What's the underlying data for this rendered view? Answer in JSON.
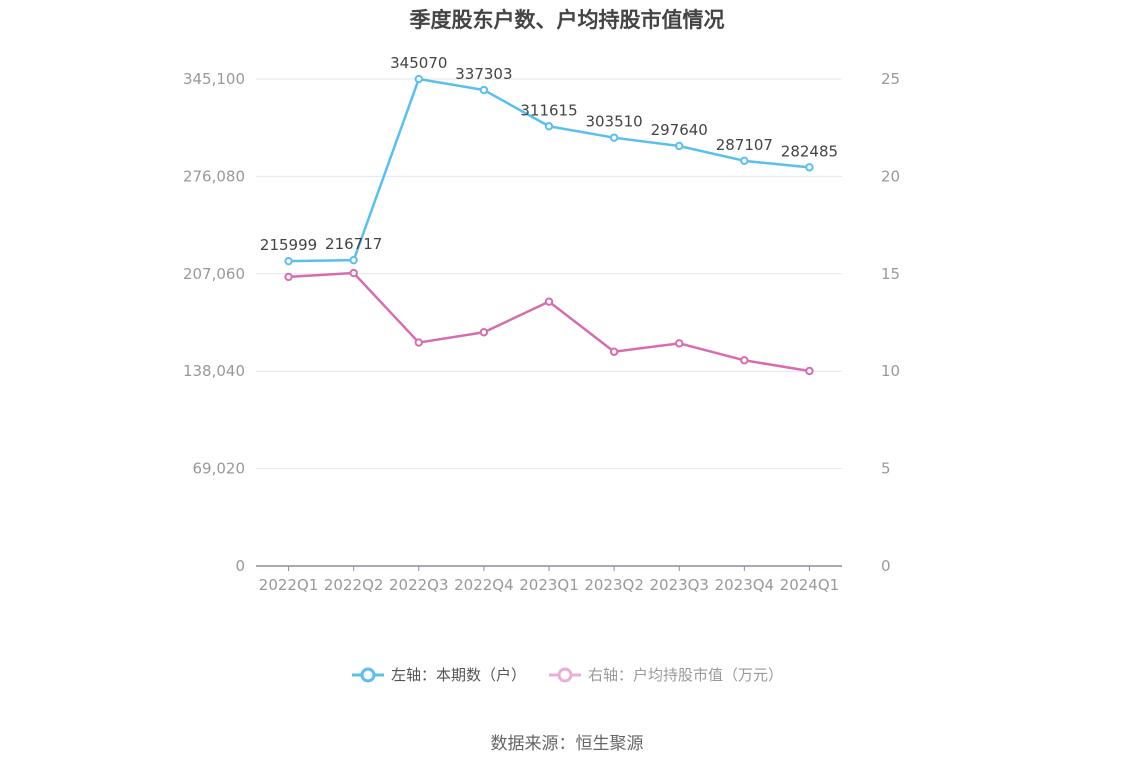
{
  "title": "季度股东户数、户均持股市值情况",
  "legend": {
    "left": {
      "label": "左轴：本期数（户）",
      "color": "#5bbfee"
    },
    "right": {
      "label": "右轴：户均持股市值（万元）",
      "color": "#d66db0",
      "legend_color": "#ecaed6"
    }
  },
  "source": "数据来源：恒生聚源",
  "axes": {
    "left_ticks": [
      "0",
      "69,020",
      "138,040",
      "207,060",
      "276,080",
      "345,100"
    ],
    "right_ticks": [
      "0",
      "5",
      "10",
      "15",
      "20",
      "25"
    ]
  },
  "chart_data": {
    "type": "line",
    "title": "季度股东户数、户均持股市值情况",
    "categories": [
      "2022Q1",
      "2022Q2",
      "2022Q3",
      "2022Q4",
      "2023Q1",
      "2023Q2",
      "2023Q3",
      "2023Q4",
      "2024Q1"
    ],
    "series": [
      {
        "name": "左轴：本期数（户）",
        "axis": "left",
        "color": "#5bbfee",
        "values": [
          215999,
          216717,
          345070,
          337303,
          311615,
          303510,
          297640,
          287107,
          282485
        ],
        "labels_shown": true
      },
      {
        "name": "右轴：户均持股市值（万元）",
        "axis": "right",
        "color": "#d66db0",
        "values": [
          14.84,
          15.04,
          11.47,
          12.0,
          13.57,
          11.0,
          11.43,
          10.56,
          10.01
        ],
        "labels_shown": false
      }
    ],
    "left_ylim": [
      0,
      345100
    ],
    "right_ylim": [
      0,
      25
    ],
    "left_ticks": [
      0,
      69020,
      138040,
      207060,
      276080,
      345100
    ],
    "right_ticks": [
      0,
      5,
      10,
      15,
      20,
      25
    ],
    "xlabel": "",
    "ylabel_left": "",
    "ylabel_right": "",
    "grid": true,
    "legend_position": "bottom"
  }
}
